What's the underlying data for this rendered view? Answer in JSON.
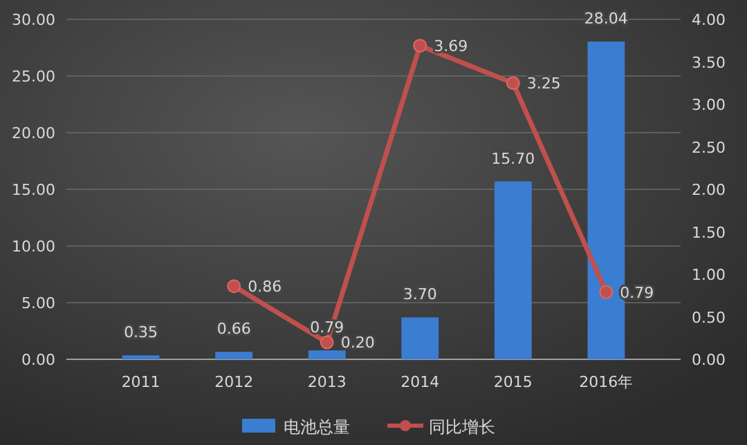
{
  "chart_data": {
    "type": "bar",
    "categories": [
      "2011",
      "2012",
      "2013",
      "2014",
      "2015",
      "2016年"
    ],
    "series": [
      {
        "name": "电池总量",
        "color": "#3b7dd0",
        "values": [
          0.35,
          0.66,
          0.79,
          3.7,
          15.7,
          28.04
        ],
        "value_labels": [
          "0.35",
          "0.66",
          "0.79",
          "3.70",
          "15.70",
          "28.04"
        ]
      },
      {
        "name": "同比增长",
        "type": "line",
        "axis": "y2",
        "color": "#c0504d",
        "marker": "circle",
        "values": [
          null,
          0.86,
          0.2,
          3.69,
          3.25,
          0.79
        ],
        "value_labels": [
          null,
          "0.86",
          "0.20",
          "3.69",
          "3.25",
          "0.79"
        ]
      }
    ],
    "ylim": [
      0,
      30
    ],
    "yticks": [
      {
        "value": 0,
        "label": "0.00"
      },
      {
        "value": 5,
        "label": "5.00"
      },
      {
        "value": 10,
        "label": "10.00"
      },
      {
        "value": 15,
        "label": "15.00"
      },
      {
        "value": 20,
        "label": "20.00"
      },
      {
        "value": 25,
        "label": "25.00"
      },
      {
        "value": 30,
        "label": "30.00"
      }
    ],
    "y2lim": [
      0,
      4
    ],
    "y2ticks": [
      {
        "value": 0,
        "label": "0.00"
      },
      {
        "value": 0.5,
        "label": "0.50"
      },
      {
        "value": 1,
        "label": "1.00"
      },
      {
        "value": 1.5,
        "label": "1.50"
      },
      {
        "value": 2,
        "label": "2.00"
      },
      {
        "value": 2.5,
        "label": "2.50"
      },
      {
        "value": 3,
        "label": "3.00"
      },
      {
        "value": 3.5,
        "label": "3.50"
      },
      {
        "value": 4,
        "label": "4.00"
      }
    ],
    "grid": "y",
    "legend": "bottom",
    "data_labels": true
  }
}
